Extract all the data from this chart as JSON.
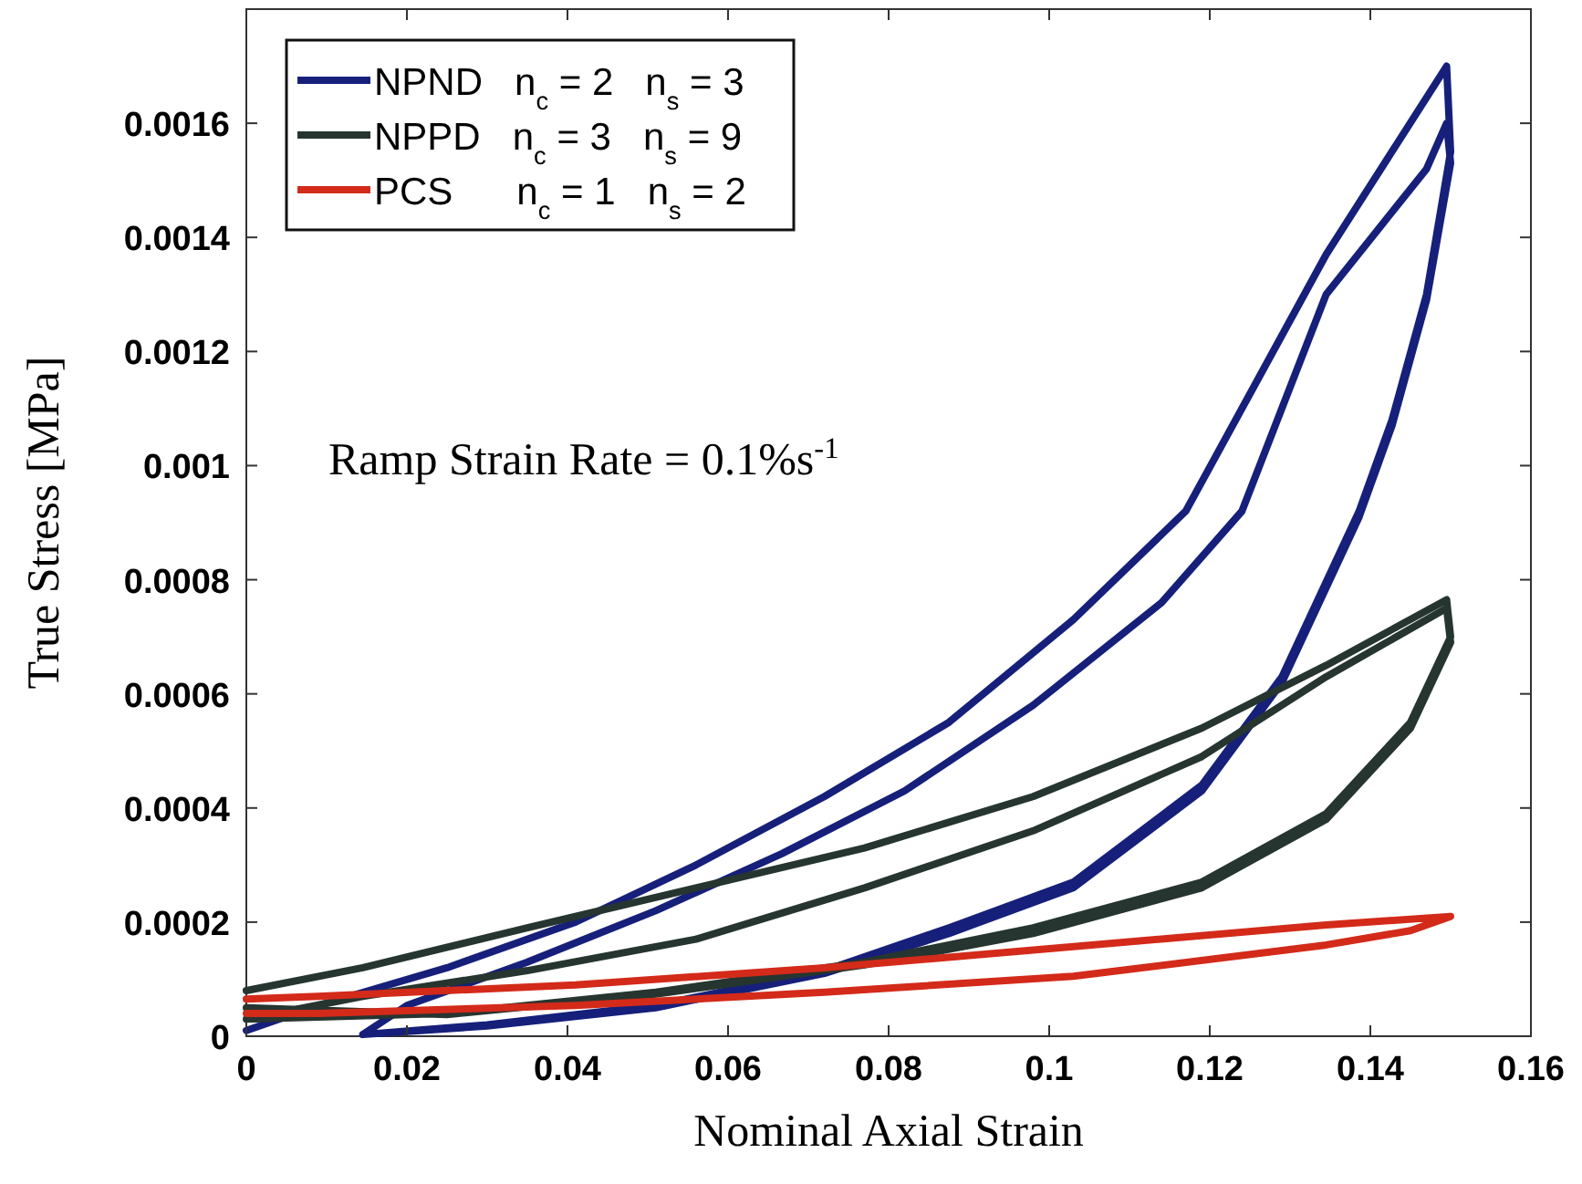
{
  "chart_data": {
    "type": "line",
    "xlabel": "Nominal Axial Strain",
    "ylabel": "True Stress [MPa]",
    "annotations": [
      "Ramp Strain Rate = 0.1%s$^{-1}$"
    ],
    "xlim": [
      0,
      0.16
    ],
    "xticks": [
      0,
      0.02,
      0.04,
      0.06,
      0.08,
      0.1,
      0.12,
      0.14,
      0.16
    ],
    "ylim": [
      0,
      0.0018
    ],
    "yticks": [
      0,
      0.0002,
      0.0004,
      0.0006,
      0.0008,
      0.001,
      0.0012,
      0.0014,
      0.0016
    ],
    "legend": "top left",
    "grid": false,
    "marker": "none",
    "line_style": "solid",
    "series": [
      {
        "name": "NPND   n$_{c}$ = 2   n$_{s}$ = 3",
        "color": "#16207a",
        "x": [
          0,
          0.009,
          0.025,
          0.041,
          0.056,
          0.072,
          0.0875,
          0.103,
          0.117,
          0.1345,
          0.1495,
          0.15,
          0.147,
          0.1427,
          0.1386,
          0.129,
          0.119,
          0.103,
          0.0875,
          0.072,
          0.051,
          0.03,
          0.0145,
          0.02,
          0.035,
          0.051,
          0.0667,
          0.082,
          0.098,
          0.114,
          0.124,
          0.1345,
          0.147,
          0.1495,
          0.15,
          0.147,
          0.1427,
          0.1386,
          0.129,
          0.119,
          0.103,
          0.0875,
          0.072,
          0.051,
          0.03,
          0.0145
        ],
        "values": [
          1e-05,
          5.4e-05,
          0.00012,
          0.0002,
          0.0003,
          0.00042,
          0.00055,
          0.00073,
          0.00092,
          0.00137,
          0.0017,
          0.00155,
          0.0013,
          0.00108,
          0.00092,
          0.00063,
          0.00044,
          0.00027,
          0.00019,
          0.000115,
          5.4e-05,
          2e-05,
          3e-06,
          5.4e-05,
          0.00013,
          0.00022,
          0.00032,
          0.00043,
          0.00058,
          0.00076,
          0.00092,
          0.0013,
          0.00152,
          0.0016,
          0.00153,
          0.00129,
          0.00107,
          0.00091,
          0.00062,
          0.00043,
          0.00026,
          0.00018,
          0.00011,
          5e-05,
          1.8e-05,
          3e-06
        ]
      },
      {
        "name": "NPPD   n$_{c}$ = 3   n$_{s}$ = 9",
        "color": "#26352f",
        "x": [
          0,
          0.0145,
          0.035,
          0.056,
          0.077,
          0.098,
          0.119,
          0.1345,
          0.1495,
          0.15,
          0.145,
          0.1345,
          0.119,
          0.098,
          0.077,
          0.051,
          0.025,
          0,
          0.0145,
          0.035,
          0.056,
          0.077,
          0.098,
          0.119,
          0.1345,
          0.1495,
          0.15,
          0.145,
          0.1345,
          0.119,
          0.098,
          0.077,
          0.051,
          0.025,
          0
        ],
        "values": [
          8e-05,
          0.00012,
          0.00019,
          0.00026,
          0.00033,
          0.00042,
          0.00054,
          0.00065,
          0.000765,
          0.0007,
          0.00055,
          0.00039,
          0.00027,
          0.00019,
          0.00013,
          7.7e-05,
          4e-05,
          3e-05,
          7e-05,
          0.000115,
          0.00017,
          0.00026,
          0.00036,
          0.00049,
          0.00063,
          0.00075,
          0.00069,
          0.00054,
          0.00038,
          0.00026,
          0.00018,
          0.000125,
          7.4e-05,
          3.8e-05,
          5e-05
        ]
      },
      {
        "name": "PCS      n$_{c}$ = 1   n$_{s}$ = 2",
        "color": "#d32a1a",
        "x": [
          0,
          0.009,
          0.041,
          0.072,
          0.103,
          0.1345,
          0.15,
          0.145,
          0.1345,
          0.103,
          0.072,
          0.041,
          0.009,
          0
        ],
        "values": [
          6.5e-05,
          7e-05,
          9e-05,
          0.00012,
          0.000157,
          0.000195,
          0.00021,
          0.000185,
          0.00016,
          0.000105,
          7.7e-05,
          5.4e-05,
          4e-05,
          4e-05
        ]
      }
    ]
  }
}
